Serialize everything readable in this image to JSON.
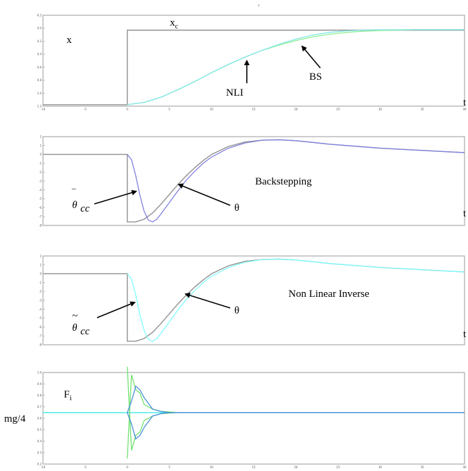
{
  "figure": {
    "top_title": "x",
    "colors": {
      "command": "#909090",
      "nli": "#7fe6e6",
      "bs": "#90ee90",
      "bs_theta": "#8080e0",
      "nli_theta": "#80ffff",
      "cmd_dark": "#707070",
      "f_blue": "#4a90d8",
      "f_green": "#70e070",
      "f_cyan": "#40e8e8"
    }
  },
  "chart_data": [
    {
      "id": "panel1",
      "type": "line",
      "xlim": [
        -10,
        40
      ],
      "ylim": [
        -0.2,
        12
      ],
      "xticks": [
        "-10",
        "-5",
        "0",
        "5",
        "10",
        "15",
        "20",
        "25",
        "30",
        "35",
        "40"
      ],
      "yticks": [
        "-0.2",
        "0.0",
        "0.2",
        "0.4",
        "0.6",
        "0.8",
        "1.0",
        "1.2"
      ],
      "annotations": {
        "ylabel": "x",
        "xlabel": "t",
        "xc_main": "x",
        "xc_sub": "c",
        "nli": "NLI",
        "bs": "BS"
      },
      "series": [
        {
          "key": "command",
          "x": [
            -10,
            0,
            0,
            40
          ],
          "y": [
            0,
            0,
            10,
            10
          ]
        },
        {
          "key": "bs",
          "x": [
            0,
            2,
            4,
            6,
            8,
            10,
            12,
            14,
            16,
            18,
            20,
            22,
            24,
            26,
            28,
            30,
            32,
            34,
            36,
            38,
            40
          ],
          "y": [
            0,
            0.3,
            1.0,
            2.0,
            3.1,
            4.3,
            5.4,
            6.4,
            7.3,
            8.0,
            8.6,
            9.1,
            9.45,
            9.7,
            9.85,
            9.95,
            10.0,
            10.05,
            10.05,
            10.05,
            10.05
          ]
        },
        {
          "key": "nli",
          "x": [
            0,
            2,
            4,
            6,
            8,
            10,
            12,
            14,
            16,
            18,
            20,
            22,
            24,
            26,
            28,
            30,
            32,
            34,
            36,
            38,
            40
          ],
          "y": [
            0,
            0.3,
            1.0,
            2.0,
            3.1,
            4.3,
            5.4,
            6.4,
            7.3,
            8.1,
            8.8,
            9.35,
            9.7,
            9.9,
            10.0,
            10.05,
            10.05,
            10.05,
            10.05,
            10.05,
            10.05
          ]
        }
      ]
    },
    {
      "id": "panel2",
      "type": "line",
      "xlim": [
        -10,
        40
      ],
      "ylim": [
        -8,
        2
      ],
      "xticks": [],
      "yticks": [
        "2",
        "1",
        "0",
        "-1",
        "-2",
        "-3",
        "-4",
        "-5",
        "-6",
        "-7",
        "-8"
      ],
      "annotations": {
        "ylabel": "θ",
        "xlabel": "t",
        "title": "Backstepping",
        "theta": "θ"
      },
      "series": [
        {
          "key": "command",
          "x": [
            -10,
            0,
            0,
            1,
            2,
            3,
            4,
            5,
            6,
            7,
            8,
            9,
            10,
            12,
            14,
            16,
            18,
            20,
            22,
            24,
            26,
            28,
            30,
            32,
            34,
            36,
            38,
            40
          ],
          "y": [
            0,
            0,
            -7.6,
            -7.6,
            -7.3,
            -6.6,
            -5.6,
            -4.5,
            -3.4,
            -2.4,
            -1.5,
            -0.7,
            0,
            0.9,
            1.4,
            1.6,
            1.65,
            1.55,
            1.35,
            1.15,
            1.0,
            0.85,
            0.7,
            0.6,
            0.5,
            0.4,
            0.3,
            0.2
          ]
        },
        {
          "key": "bs_theta",
          "x": [
            0,
            0.5,
            1,
            1.5,
            2,
            2.5,
            3,
            3.5,
            4,
            5,
            6,
            7,
            8,
            9,
            10,
            12,
            14,
            16,
            18,
            20,
            22,
            24,
            26,
            28,
            30,
            32,
            34,
            36,
            38,
            40
          ],
          "y": [
            0,
            -0.6,
            -2.4,
            -4.6,
            -6.4,
            -7.4,
            -7.6,
            -7.3,
            -6.7,
            -5.4,
            -4.1,
            -2.9,
            -1.9,
            -1.0,
            -0.3,
            0.7,
            1.3,
            1.6,
            1.65,
            1.55,
            1.35,
            1.15,
            1.0,
            0.85,
            0.7,
            0.6,
            0.5,
            0.4,
            0.3,
            0.2
          ]
        }
      ]
    },
    {
      "id": "panel3",
      "type": "line",
      "xlim": [
        -10,
        40
      ],
      "ylim": [
        -8,
        2
      ],
      "xticks": [],
      "yticks": [
        "2",
        "1",
        "0",
        "-1",
        "-2",
        "-3",
        "-4",
        "-5",
        "-6",
        "-7",
        "-8"
      ],
      "annotations": {
        "ylabel": "θ",
        "xlabel": "t",
        "title": "Non Linear Inverse",
        "theta": "θ"
      },
      "series": [
        {
          "key": "command",
          "x": [
            -10,
            0,
            0,
            1,
            2,
            3,
            4,
            5,
            6,
            7,
            8,
            9,
            10,
            12,
            14,
            16,
            18,
            20,
            22,
            24,
            26,
            28,
            30,
            32,
            34,
            36,
            38,
            40
          ],
          "y": [
            0,
            0,
            -7.6,
            -7.6,
            -7.3,
            -6.6,
            -5.6,
            -4.5,
            -3.4,
            -2.4,
            -1.5,
            -0.7,
            0,
            0.9,
            1.4,
            1.6,
            1.65,
            1.55,
            1.35,
            1.15,
            1.0,
            0.85,
            0.7,
            0.6,
            0.5,
            0.4,
            0.3,
            0.2
          ]
        },
        {
          "key": "nli_theta",
          "x": [
            0,
            0.5,
            1,
            1.5,
            2,
            2.5,
            3,
            3.5,
            4,
            5,
            6,
            7,
            8,
            9,
            10,
            12,
            14,
            16,
            18,
            20,
            22,
            24,
            26,
            28,
            30,
            32,
            34,
            36,
            38,
            40
          ],
          "y": [
            0,
            -0.6,
            -2.4,
            -4.6,
            -6.4,
            -7.4,
            -7.6,
            -7.3,
            -6.7,
            -5.4,
            -4.1,
            -2.9,
            -1.9,
            -1.0,
            -0.3,
            0.7,
            1.3,
            1.6,
            1.65,
            1.55,
            1.35,
            1.15,
            1.0,
            0.85,
            0.7,
            0.6,
            0.5,
            0.4,
            0.3,
            0.2
          ]
        }
      ]
    },
    {
      "id": "panel4",
      "type": "line",
      "xlim": [
        -10,
        40
      ],
      "ylim": [
        0.2,
        1.0
      ],
      "xticks": [
        "-10",
        "-5",
        "0",
        "5",
        "10",
        "15",
        "20",
        "25",
        "30",
        "35",
        "40"
      ],
      "yticks": [
        "1.0",
        "0.9",
        "0.8",
        "0.7",
        "0.6",
        "0.5",
        "0.4",
        "0.3",
        "0.2"
      ],
      "annotations": {
        "ylabel": "mg/4",
        "fi_main": "F",
        "fi_sub": "i"
      },
      "series": [
        {
          "key": "f_cyan",
          "x": [
            -10,
            40
          ],
          "y": [
            0.65,
            0.65
          ]
        },
        {
          "key": "f_green",
          "x": [
            0,
            0.5,
            1,
            1.5,
            2,
            3,
            4,
            5,
            6,
            7,
            8,
            40
          ],
          "y": [
            0.25,
            0.98,
            0.85,
            0.82,
            0.72,
            0.68,
            0.66,
            0.655,
            0.65,
            0.65,
            0.65,
            0.65
          ]
        },
        {
          "key": "f_green",
          "x": [
            0,
            0.5,
            1,
            1.5,
            2,
            3,
            4,
            5,
            6,
            7,
            8,
            40
          ],
          "y": [
            1.05,
            0.32,
            0.45,
            0.48,
            0.58,
            0.62,
            0.64,
            0.645,
            0.65,
            0.65,
            0.65,
            0.65
          ]
        },
        {
          "key": "f_blue",
          "x": [
            0,
            0.5,
            1,
            1.5,
            2,
            2.5,
            3,
            4,
            5,
            6,
            7,
            40
          ],
          "y": [
            0.65,
            0.55,
            0.42,
            0.45,
            0.52,
            0.57,
            0.62,
            0.64,
            0.65,
            0.65,
            0.65,
            0.65
          ]
        },
        {
          "key": "f_blue",
          "x": [
            0,
            0.5,
            1,
            1.5,
            2,
            2.5,
            3,
            4,
            5,
            6,
            7,
            40
          ],
          "y": [
            0.65,
            0.75,
            0.88,
            0.85,
            0.78,
            0.73,
            0.68,
            0.66,
            0.65,
            0.65,
            0.65,
            0.65
          ]
        }
      ]
    }
  ]
}
